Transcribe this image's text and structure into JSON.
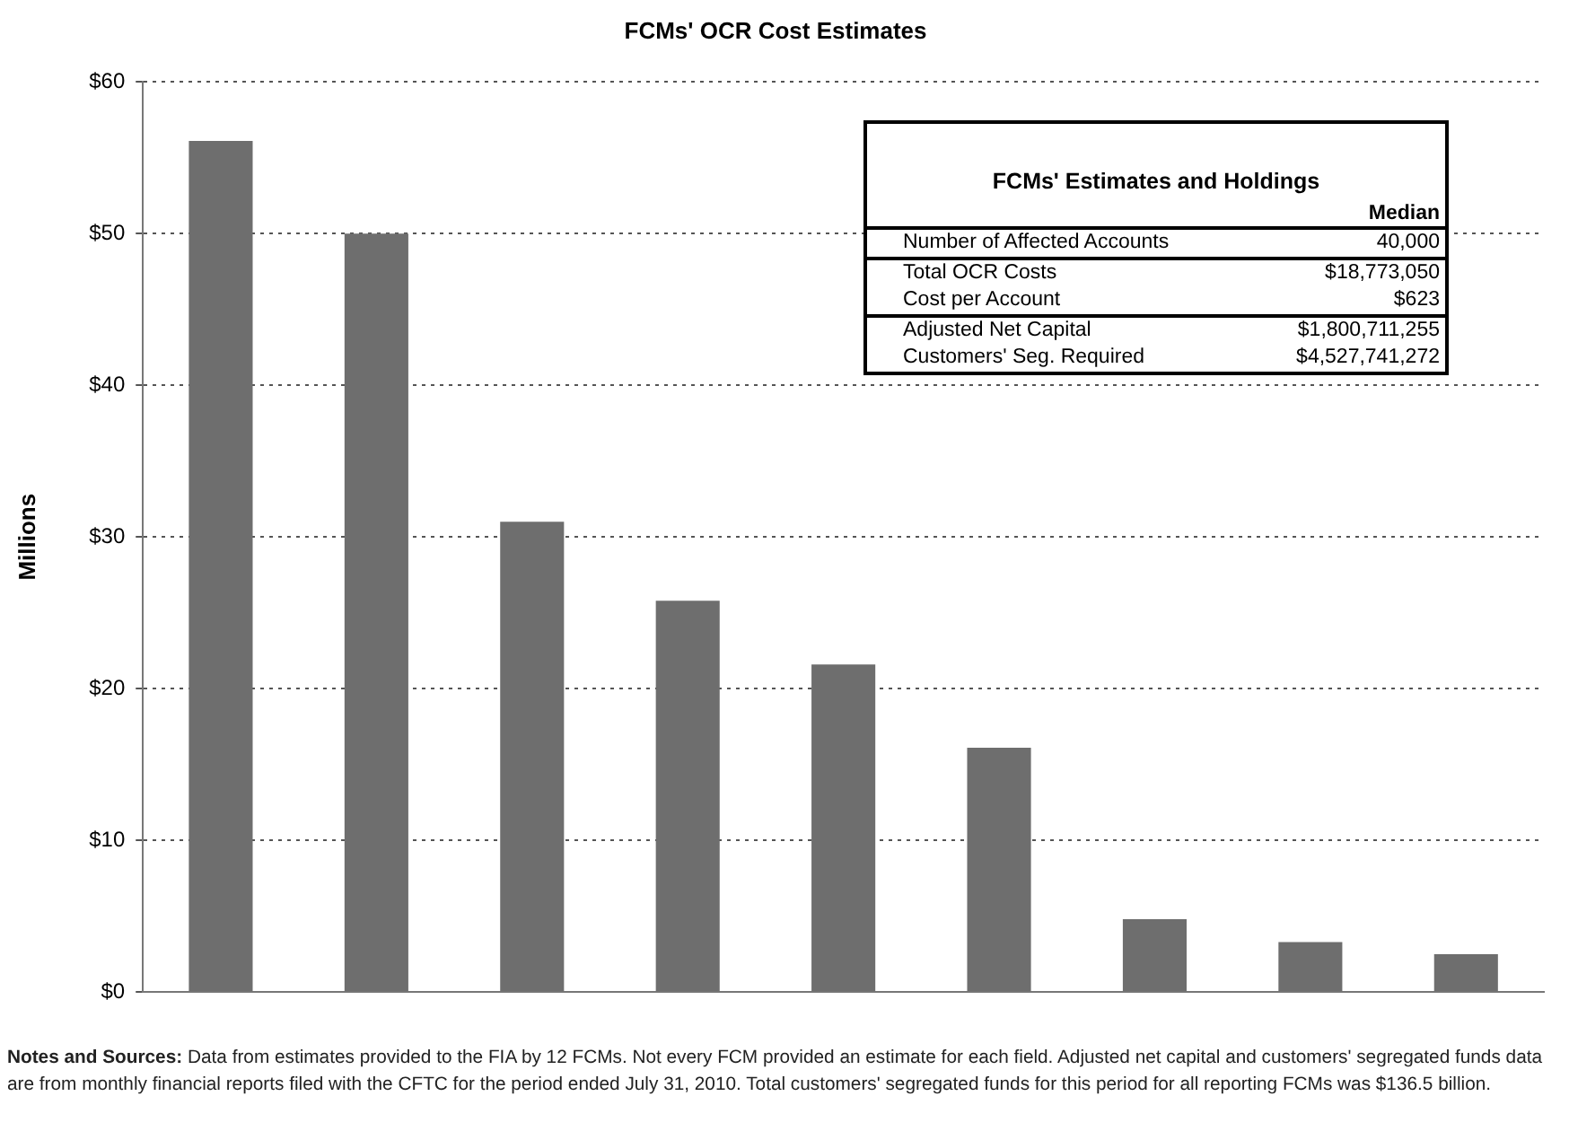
{
  "chart_data": {
    "type": "bar",
    "title": "FCMs' OCR Cost Estimates",
    "ylabel": "Millions",
    "categories": [
      null,
      null,
      null,
      null,
      null,
      null,
      null,
      null,
      null
    ],
    "values": [
      56.1,
      50.0,
      31.0,
      25.8,
      21.6,
      16.1,
      4.8,
      3.3,
      2.5
    ],
    "color": "#6e6e6e",
    "ylim": [
      0,
      60
    ],
    "yticks": [
      {
        "value": 0,
        "label": "$0"
      },
      {
        "value": 10,
        "label": "$10"
      },
      {
        "value": 20,
        "label": "$20"
      },
      {
        "value": 30,
        "label": "$30"
      },
      {
        "value": 40,
        "label": "$40"
      },
      {
        "value": 50,
        "label": "$50"
      },
      {
        "value": 60,
        "label": "$60"
      }
    ],
    "grid": "y",
    "legend": false,
    "annotations": [
      "FCMs' Estimates and Holdings",
      "Median",
      "Number of Affected Accounts",
      "40,000",
      "Total OCR Costs",
      "$18,773,050",
      "Cost per Account",
      "$623",
      "Adjusted Net Capital",
      "$1,800,711,255",
      "Customers' Seg. Required",
      "$4,527,741,272",
      "Notes and Sources: Data from estimates provided to the FIA by 12 FCMs. Not every FCM provided an estimate for each field. Adjusted net capital and customers' segregated funds data are from monthly financial reports filed with the CFTC for the period ended July 31, 2010. Total customers' segregated funds for this period for all reporting FCMs was $136.5 billion."
    ]
  }
}
